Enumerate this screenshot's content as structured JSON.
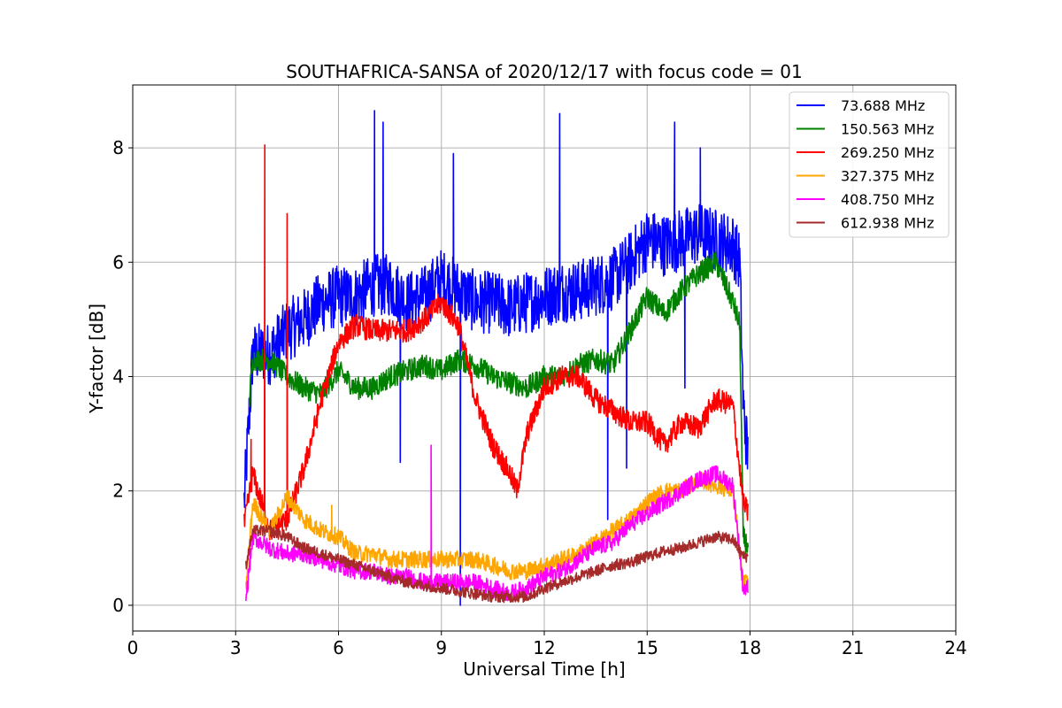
{
  "chart_data": {
    "type": "line",
    "title": "SOUTHAFRICA-SANSA of 2020/12/17 with focus code = 01",
    "xlabel": "Universal Time [h]",
    "ylabel": "Y-factor [dB]",
    "xlim": [
      0,
      24
    ],
    "ylim": [
      -0.45,
      9.1
    ],
    "xticks": [
      0,
      3,
      6,
      9,
      12,
      15,
      18,
      21,
      24
    ],
    "yticks": [
      0,
      2,
      4,
      6,
      8
    ],
    "grid": true,
    "legend_position": "top-right",
    "series": [
      {
        "name": "73.688 MHz",
        "legend_label": " 73.688 MHz",
        "color": "#0000ff",
        "x": [
          3.25,
          3.5,
          4.0,
          4.5,
          5.0,
          5.5,
          6.0,
          6.5,
          7.0,
          7.5,
          8.0,
          8.5,
          9.0,
          9.5,
          10.0,
          10.5,
          11.0,
          11.5,
          12.0,
          12.5,
          13.0,
          13.5,
          14.0,
          14.5,
          15.0,
          15.5,
          16.0,
          16.5,
          17.0,
          17.5,
          17.7,
          17.8,
          17.95
        ],
        "y": [
          1.8,
          4.4,
          4.4,
          4.8,
          5.0,
          5.3,
          5.4,
          5.4,
          5.6,
          5.6,
          5.3,
          5.4,
          5.7,
          5.5,
          5.3,
          5.3,
          5.2,
          5.3,
          5.4,
          5.5,
          5.5,
          5.6,
          5.7,
          6.0,
          6.4,
          6.3,
          6.4,
          6.5,
          6.4,
          6.3,
          6.0,
          3.5,
          2.5
        ],
        "noise": 0.55
      },
      {
        "name": "150.563 MHz",
        "legend_label": "150.563 MHz",
        "color": "#008000",
        "x": [
          3.4,
          3.5,
          4.0,
          4.5,
          5.0,
          5.5,
          6.0,
          6.5,
          7.0,
          7.5,
          8.0,
          8.5,
          9.0,
          9.5,
          10.0,
          10.5,
          11.0,
          11.5,
          12.0,
          12.5,
          13.0,
          13.5,
          14.0,
          14.5,
          15.0,
          15.5,
          16.0,
          16.5,
          17.0,
          17.5,
          17.7,
          17.8,
          17.95
        ],
        "y": [
          3.6,
          4.3,
          4.3,
          4.0,
          3.8,
          3.7,
          4.1,
          3.8,
          3.8,
          4.0,
          4.1,
          4.2,
          4.1,
          4.3,
          4.2,
          4.0,
          3.9,
          3.8,
          4.0,
          4.0,
          4.2,
          4.3,
          4.2,
          4.8,
          5.4,
          5.1,
          5.5,
          5.8,
          6.0,
          5.3,
          4.9,
          1.2,
          1.0
        ],
        "noise": 0.2
      },
      {
        "name": "269.250 MHz",
        "legend_label": "269.250 MHz",
        "color": "#ff0000",
        "x": [
          3.25,
          3.5,
          4.0,
          4.5,
          5.0,
          5.5,
          6.0,
          6.5,
          7.0,
          7.5,
          8.0,
          8.5,
          9.0,
          9.5,
          10.0,
          10.5,
          11.0,
          11.2,
          11.5,
          12.0,
          12.5,
          13.0,
          13.5,
          14.0,
          14.5,
          15.0,
          15.5,
          16.0,
          16.5,
          17.0,
          17.5,
          17.8,
          17.95
        ],
        "y": [
          1.4,
          2.3,
          1.3,
          1.5,
          2.4,
          3.6,
          4.6,
          4.9,
          4.8,
          4.8,
          4.8,
          5.0,
          5.3,
          4.9,
          3.6,
          2.8,
          2.3,
          2.0,
          3.0,
          3.8,
          4.0,
          4.0,
          3.6,
          3.4,
          3.2,
          3.2,
          2.8,
          3.2,
          3.1,
          3.6,
          3.5,
          1.8,
          1.6
        ],
        "noise": 0.2
      },
      {
        "name": "327.375 MHz",
        "legend_label": "327.375 MHz",
        "color": "#ffa500",
        "x": [
          3.3,
          3.5,
          4.0,
          4.5,
          5.0,
          5.5,
          6.0,
          6.5,
          7.0,
          7.5,
          8.0,
          8.5,
          9.0,
          9.5,
          10.0,
          10.5,
          11.0,
          11.5,
          12.0,
          12.5,
          13.0,
          13.5,
          14.0,
          14.5,
          15.0,
          15.5,
          16.0,
          16.5,
          17.0,
          17.5,
          17.8,
          17.95
        ],
        "y": [
          0.3,
          1.8,
          1.3,
          1.9,
          1.5,
          1.3,
          1.2,
          0.9,
          0.9,
          0.8,
          0.8,
          0.8,
          0.8,
          0.8,
          0.8,
          0.7,
          0.6,
          0.6,
          0.7,
          0.8,
          0.9,
          1.1,
          1.3,
          1.5,
          1.8,
          2.0,
          2.0,
          2.2,
          2.1,
          2.0,
          0.4,
          0.4
        ],
        "noise": 0.15
      },
      {
        "name": "408.750 MHz",
        "legend_label": "408.750 MHz",
        "color": "#ff00ff",
        "x": [
          3.3,
          3.5,
          4.0,
          4.5,
          5.0,
          5.5,
          6.0,
          6.5,
          7.0,
          7.5,
          8.0,
          8.5,
          9.0,
          9.5,
          10.0,
          10.5,
          11.0,
          11.5,
          12.0,
          12.5,
          13.0,
          13.5,
          14.0,
          14.5,
          15.0,
          15.5,
          16.0,
          16.5,
          17.0,
          17.5,
          17.8,
          17.95
        ],
        "y": [
          0.1,
          1.2,
          1.0,
          0.9,
          0.9,
          0.8,
          0.7,
          0.6,
          0.6,
          0.5,
          0.5,
          0.4,
          0.4,
          0.4,
          0.4,
          0.3,
          0.2,
          0.3,
          0.5,
          0.6,
          0.8,
          1.0,
          1.1,
          1.4,
          1.6,
          1.8,
          2.0,
          2.2,
          2.3,
          2.1,
          0.3,
          0.3
        ],
        "noise": 0.15
      },
      {
        "name": "612.938 MHz",
        "legend_label": "612.938 MHz",
        "color": "#a52a2a",
        "x": [
          3.3,
          3.5,
          4.0,
          4.5,
          5.0,
          5.5,
          6.0,
          6.5,
          7.0,
          7.5,
          8.0,
          8.5,
          9.0,
          9.5,
          10.0,
          10.5,
          11.0,
          11.5,
          12.0,
          12.5,
          13.0,
          13.5,
          14.0,
          14.5,
          15.0,
          15.5,
          16.0,
          16.5,
          17.0,
          17.5,
          17.8,
          17.95
        ],
        "y": [
          0.7,
          1.3,
          1.3,
          1.2,
          1.0,
          0.9,
          0.8,
          0.7,
          0.6,
          0.5,
          0.4,
          0.35,
          0.3,
          0.25,
          0.2,
          0.15,
          0.15,
          0.15,
          0.3,
          0.4,
          0.5,
          0.6,
          0.7,
          0.75,
          0.85,
          0.95,
          1.0,
          1.1,
          1.2,
          1.15,
          0.85,
          0.85
        ],
        "noise": 0.1
      }
    ],
    "spikes": [
      {
        "series": "269.250 MHz",
        "x": 3.85,
        "y": 8.05
      },
      {
        "series": "269.250 MHz",
        "x": 4.5,
        "y": 6.85
      },
      {
        "series": "269.250 MHz",
        "x": 3.45,
        "y": 2.9
      },
      {
        "series": "408.750 MHz",
        "x": 8.7,
        "y": 2.8
      },
      {
        "series": "327.375 MHz",
        "x": 5.8,
        "y": 1.75
      },
      {
        "series": "73.688 MHz",
        "x": 7.05,
        "y": 8.65
      },
      {
        "series": "73.688 MHz",
        "x": 7.3,
        "y": 8.45
      },
      {
        "series": "73.688 MHz",
        "x": 9.35,
        "y": 7.9
      },
      {
        "series": "73.688 MHz",
        "x": 12.45,
        "y": 8.6
      },
      {
        "series": "73.688 MHz",
        "x": 15.8,
        "y": 8.45
      },
      {
        "series": "73.688 MHz",
        "x": 16.55,
        "y": 8.0
      },
      {
        "series": "73.688 MHz",
        "x": 9.55,
        "y": 0.0
      },
      {
        "series": "73.688 MHz",
        "x": 7.8,
        "y": 2.5
      },
      {
        "series": "73.688 MHz",
        "x": 13.85,
        "y": 1.5
      },
      {
        "series": "73.688 MHz",
        "x": 14.4,
        "y": 2.4
      },
      {
        "series": "73.688 MHz",
        "x": 16.1,
        "y": 3.8
      }
    ]
  }
}
